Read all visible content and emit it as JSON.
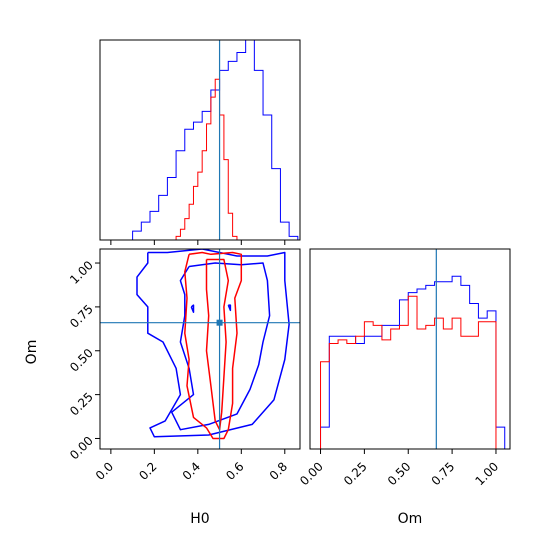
{
  "chart_data": {
    "type": "corner",
    "truth": {
      "H0": 0.5,
      "Om": 0.66
    },
    "colors": {
      "blue": "#0000ff",
      "red": "#ff0000",
      "truth": "#1f77b4",
      "axes": "#000000"
    },
    "series": [
      {
        "color": "blue"
      },
      {
        "color": "red"
      }
    ],
    "panels": [
      {
        "id": "hist-H0",
        "type": "histogram",
        "xlim": [
          -0.05,
          0.87
        ],
        "ylim": [
          0,
          1.12
        ],
        "xlabel": "",
        "ylabel": "",
        "truth_x": 0.5,
        "blue": {
          "edges": [
            0.06,
            0.1,
            0.14,
            0.18,
            0.22,
            0.26,
            0.3,
            0.34,
            0.38,
            0.42,
            0.46,
            0.5,
            0.54,
            0.58,
            0.62,
            0.66,
            0.7,
            0.74,
            0.78,
            0.82,
            0.86
          ],
          "heights": [
            0.0,
            0.05,
            0.1,
            0.16,
            0.25,
            0.35,
            0.5,
            0.62,
            0.66,
            0.72,
            0.84,
            0.95,
            1.0,
            1.05,
            1.12,
            0.95,
            0.7,
            0.4,
            0.1,
            0.02
          ]
        },
        "red": {
          "edges": [
            0.3,
            0.32,
            0.34,
            0.36,
            0.38,
            0.4,
            0.42,
            0.44,
            0.46,
            0.48,
            0.5,
            0.52,
            0.54,
            0.56,
            0.58,
            0.6
          ],
          "heights": [
            0.02,
            0.06,
            0.12,
            0.2,
            0.3,
            0.38,
            0.5,
            0.65,
            0.8,
            0.9,
            0.7,
            0.45,
            0.15,
            0.02,
            0.0
          ]
        }
      },
      {
        "id": "contour-H0-Om",
        "type": "contour",
        "xlim": [
          -0.05,
          0.87
        ],
        "ylim": [
          -0.06,
          1.08
        ],
        "xlabel": "H0",
        "ylabel": "Om",
        "xticks": [
          {
            "value": 0.0,
            "label": "0.0"
          },
          {
            "value": 0.2,
            "label": "0.2"
          },
          {
            "value": 0.4,
            "label": "0.4"
          },
          {
            "value": 0.6,
            "label": "0.6"
          },
          {
            "value": 0.8,
            "label": "0.8"
          }
        ],
        "yticks": [
          {
            "value": 0.0,
            "label": "0.00"
          },
          {
            "value": 0.25,
            "label": "0.25"
          },
          {
            "value": 0.5,
            "label": "0.50"
          },
          {
            "value": 0.75,
            "label": "0.75"
          },
          {
            "value": 1.0,
            "label": "1.00"
          }
        ],
        "truth_x": 0.5,
        "truth_y": 0.66,
        "blue_contours": [
          [
            [
              0.17,
              1.06
            ],
            [
              0.26,
              1.06
            ],
            [
              0.42,
              1.08
            ],
            [
              0.58,
              1.04
            ],
            [
              0.72,
              1.04
            ],
            [
              0.8,
              1.06
            ],
            [
              0.8,
              0.9
            ],
            [
              0.82,
              0.65
            ],
            [
              0.8,
              0.45
            ],
            [
              0.75,
              0.22
            ],
            [
              0.65,
              0.08
            ],
            [
              0.45,
              0.02
            ],
            [
              0.2,
              0.01
            ],
            [
              0.18,
              0.06
            ],
            [
              0.25,
              0.1
            ],
            [
              0.32,
              0.25
            ],
            [
              0.3,
              0.4
            ],
            [
              0.24,
              0.55
            ],
            [
              0.17,
              0.6
            ],
            [
              0.17,
              0.75
            ],
            [
              0.12,
              0.82
            ],
            [
              0.12,
              0.92
            ],
            [
              0.17,
              1.0
            ],
            [
              0.17,
              1.06
            ]
          ],
          [
            [
              0.36,
              0.98
            ],
            [
              0.48,
              1.0
            ],
            [
              0.6,
              0.99
            ],
            [
              0.7,
              1.0
            ],
            [
              0.72,
              0.9
            ],
            [
              0.73,
              0.7
            ],
            [
              0.7,
              0.55
            ],
            [
              0.68,
              0.42
            ],
            [
              0.64,
              0.28
            ],
            [
              0.58,
              0.14
            ],
            [
              0.45,
              0.08
            ],
            [
              0.32,
              0.05
            ],
            [
              0.28,
              0.15
            ],
            [
              0.38,
              0.25
            ],
            [
              0.36,
              0.4
            ],
            [
              0.32,
              0.55
            ],
            [
              0.34,
              0.7
            ],
            [
              0.34,
              0.82
            ],
            [
              0.32,
              0.9
            ],
            [
              0.36,
              0.98
            ]
          ],
          [
            [
              0.54,
              0.76
            ],
            [
              0.55,
              0.73
            ],
            [
              0.55,
              0.76
            ],
            [
              0.54,
              0.76
            ]
          ],
          [
            [
              0.37,
              0.75
            ],
            [
              0.38,
              0.72
            ],
            [
              0.38,
              0.76
            ],
            [
              0.37,
              0.75
            ]
          ]
        ],
        "red_contours": [
          [
            [
              0.36,
              1.05
            ],
            [
              0.42,
              1.06
            ],
            [
              0.46,
              1.05
            ],
            [
              0.56,
              1.06
            ],
            [
              0.6,
              1.05
            ],
            [
              0.6,
              0.9
            ],
            [
              0.57,
              0.8
            ],
            [
              0.58,
              0.6
            ],
            [
              0.56,
              0.4
            ],
            [
              0.56,
              0.2
            ],
            [
              0.54,
              0.05
            ],
            [
              0.52,
              0.0
            ],
            [
              0.47,
              0.0
            ],
            [
              0.44,
              0.06
            ],
            [
              0.38,
              0.12
            ],
            [
              0.35,
              0.3
            ],
            [
              0.36,
              0.45
            ],
            [
              0.34,
              0.6
            ],
            [
              0.35,
              0.8
            ],
            [
              0.34,
              0.95
            ],
            [
              0.36,
              1.05
            ]
          ],
          [
            [
              0.44,
              1.02
            ],
            [
              0.52,
              1.02
            ],
            [
              0.54,
              0.9
            ],
            [
              0.52,
              0.75
            ],
            [
              0.53,
              0.55
            ],
            [
              0.52,
              0.35
            ],
            [
              0.51,
              0.15
            ],
            [
              0.5,
              0.05
            ],
            [
              0.48,
              0.1
            ],
            [
              0.46,
              0.3
            ],
            [
              0.44,
              0.5
            ],
            [
              0.45,
              0.7
            ],
            [
              0.44,
              0.85
            ],
            [
              0.44,
              1.02
            ]
          ]
        ]
      },
      {
        "id": "hist-Om",
        "type": "histogram",
        "xlim": [
          -0.06,
          1.08
        ],
        "ylim": [
          0,
          1.1
        ],
        "xlabel": "Om",
        "ylabel": "",
        "xticks": [
          {
            "value": 0.0,
            "label": "0.00"
          },
          {
            "value": 0.25,
            "label": "0.25"
          },
          {
            "value": 0.5,
            "label": "0.50"
          },
          {
            "value": 0.75,
            "label": "0.75"
          },
          {
            "value": 1.0,
            "label": "1.00"
          }
        ],
        "truth_x": 0.66,
        "blue": {
          "edges": [
            0.0,
            0.05,
            0.1,
            0.15,
            0.2,
            0.25,
            0.3,
            0.35,
            0.4,
            0.45,
            0.5,
            0.55,
            0.6,
            0.65,
            0.7,
            0.75,
            0.8,
            0.85,
            0.9,
            0.95,
            1.0,
            1.05
          ],
          "heights": [
            0.12,
            0.62,
            0.62,
            0.62,
            0.58,
            0.62,
            0.62,
            0.68,
            0.68,
            0.82,
            0.86,
            0.88,
            0.9,
            0.92,
            0.92,
            0.95,
            0.9,
            0.8,
            0.72,
            0.76,
            0.12
          ]
        },
        "red": {
          "edges": [
            0.0,
            0.05,
            0.1,
            0.15,
            0.2,
            0.25,
            0.3,
            0.35,
            0.4,
            0.45,
            0.5,
            0.55,
            0.6,
            0.65,
            0.7,
            0.75,
            0.8,
            0.85,
            0.9,
            0.95,
            1.0
          ],
          "heights": [
            0.48,
            0.58,
            0.6,
            0.58,
            0.62,
            0.7,
            0.68,
            0.6,
            0.66,
            0.68,
            0.84,
            0.66,
            0.68,
            0.72,
            0.66,
            0.72,
            0.62,
            0.62,
            0.7,
            0.7
          ]
        }
      }
    ]
  }
}
